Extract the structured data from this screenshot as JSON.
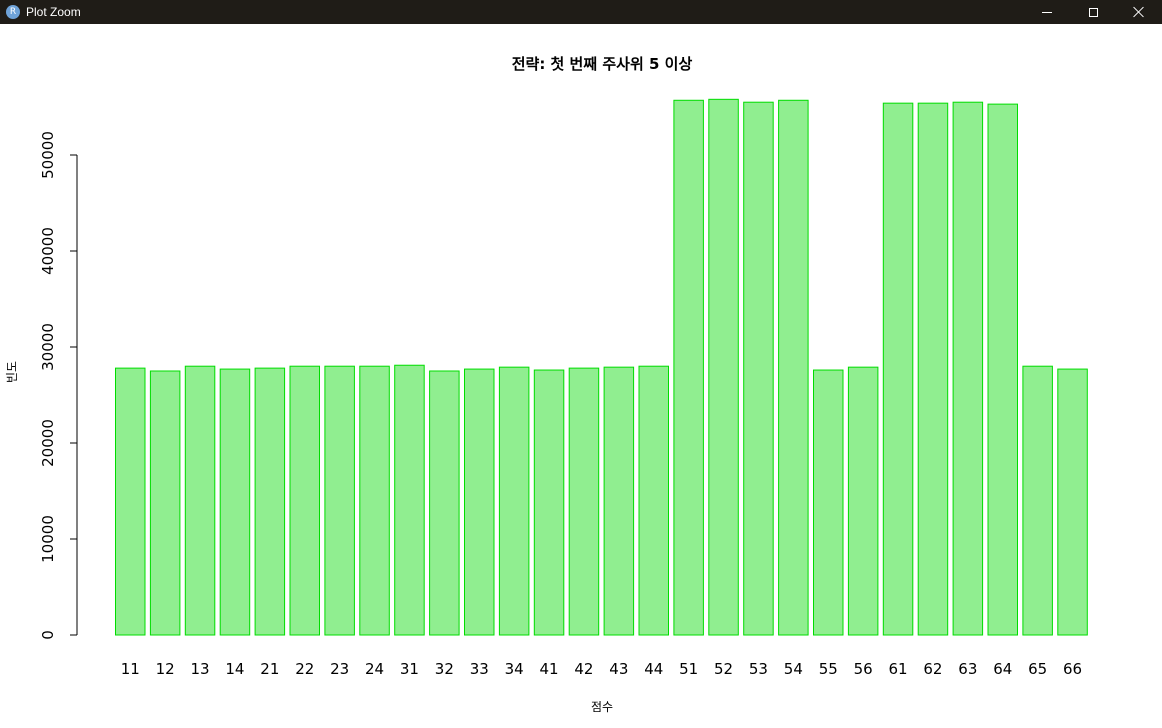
{
  "window": {
    "title": "Plot Zoom",
    "icon_letter": "R"
  },
  "chart_data": {
    "type": "bar",
    "title": "전략: 첫 번째 주사위 5 이상",
    "xlabel": "점수",
    "ylabel": "빈도",
    "categories": [
      "11",
      "12",
      "13",
      "14",
      "21",
      "22",
      "23",
      "24",
      "31",
      "32",
      "33",
      "34",
      "41",
      "42",
      "43",
      "44",
      "51",
      "52",
      "53",
      "54",
      "55",
      "56",
      "61",
      "62",
      "63",
      "64",
      "65",
      "66"
    ],
    "values": [
      27800,
      27500,
      28000,
      27700,
      27800,
      28000,
      28000,
      28000,
      28100,
      27500,
      27700,
      27900,
      27600,
      27800,
      27900,
      28000,
      55700,
      55800,
      55500,
      55700,
      27600,
      27900,
      55400,
      55400,
      55500,
      55300,
      28000,
      27700
    ],
    "ylim": [
      0,
      56000
    ],
    "yticks": [
      0,
      10000,
      20000,
      30000,
      40000,
      50000
    ],
    "bar_fill": "#90ee90",
    "bar_border": "#00dd00"
  }
}
